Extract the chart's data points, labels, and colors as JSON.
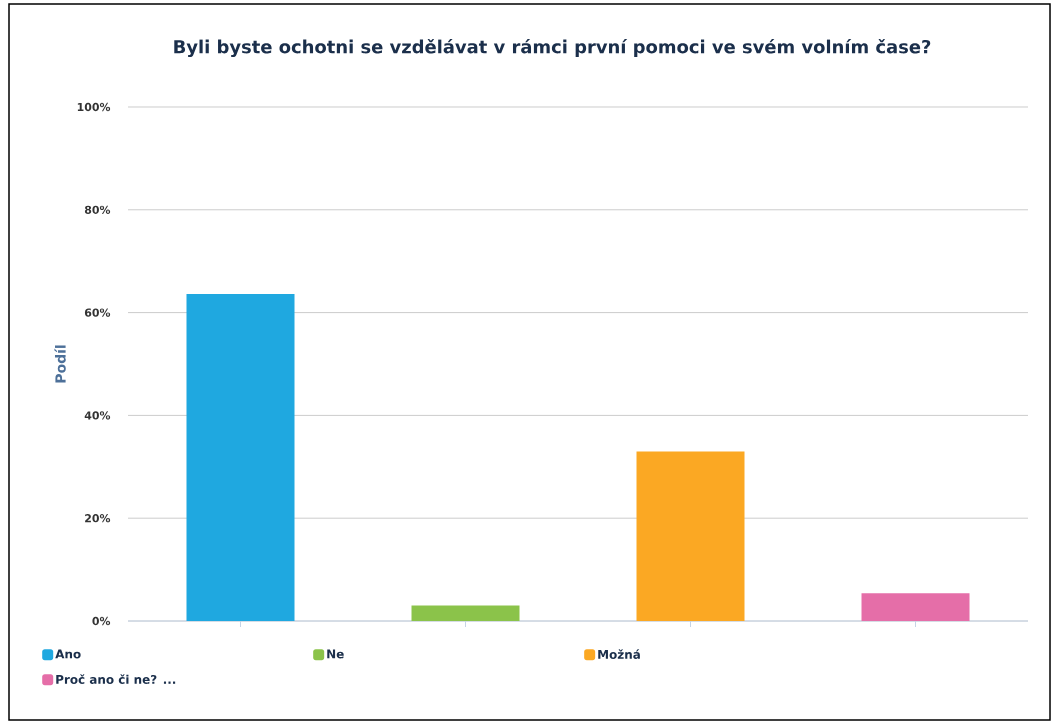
{
  "chart_data": {
    "type": "bar",
    "title": "Byli byste ochotni se vzdělávat v rámci první pomoci ve svém volním čase?",
    "ylabel": "Podíl",
    "categories": [
      null,
      null,
      null,
      null
    ],
    "series": [
      {
        "name": "Ano",
        "color": "#1fa8e0",
        "values": [
          63.6,
          null,
          null,
          null
        ]
      },
      {
        "name": "Ne",
        "color": "#8bc34a",
        "values": [
          null,
          3.0,
          null,
          null
        ]
      },
      {
        "name": "Možná",
        "color": "#fba823",
        "values": [
          null,
          null,
          33.0,
          null
        ]
      },
      {
        "name": "Proč ano či ne? ...",
        "color": "#e56ea8",
        "values": [
          null,
          null,
          null,
          5.4
        ]
      }
    ],
    "ylim": [
      0,
      100
    ],
    "yticks": [
      {
        "value": 0,
        "label": "0%"
      },
      {
        "value": 20,
        "label": "20%"
      },
      {
        "value": 40,
        "label": "40%"
      },
      {
        "value": 60,
        "label": "60%"
      },
      {
        "value": 80,
        "label": "80%"
      },
      {
        "value": 100,
        "label": "100%"
      }
    ],
    "grid": "y",
    "legend": "bottom"
  }
}
